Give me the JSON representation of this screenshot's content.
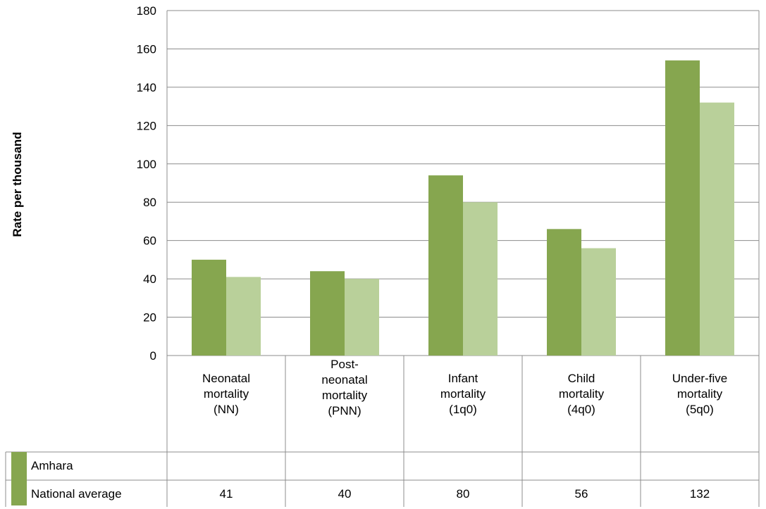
{
  "chart_data": {
    "type": "bar",
    "ylabel": "Rate per thousand",
    "ylim": [
      0,
      180
    ],
    "yticks": [
      0,
      20,
      40,
      60,
      80,
      100,
      120,
      140,
      160,
      180
    ],
    "grid": true,
    "categories": [
      "Neonatal\nmortality\n(NN)",
      "Post-\nneonatal\nmortality\n(PNN)",
      "Infant\nmortality\n(1q0)",
      "Child\nmortality\n(4q0)",
      "Under-five\nmortality\n(5q0)"
    ],
    "series": [
      {
        "name": "Amhara",
        "color": "#86a64f",
        "values": [
          50,
          44,
          94,
          66,
          154
        ]
      },
      {
        "name": "National average",
        "color": "#b9d09a",
        "values": [
          41,
          40,
          80,
          56,
          132
        ]
      }
    ],
    "table_values": [
      "41",
      "40",
      "80",
      "56",
      "132"
    ],
    "legend_placement": "data table below chart"
  }
}
